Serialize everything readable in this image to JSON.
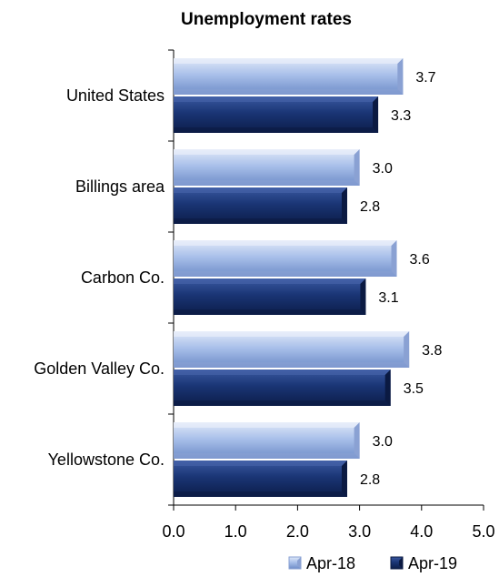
{
  "chart_data": {
    "type": "bar",
    "orientation": "horizontal",
    "title": "Unemployment rates",
    "categories": [
      "United States",
      "Billings area",
      "Carbon Co.",
      "Golden Valley Co.",
      "Yellowstone Co."
    ],
    "series": [
      {
        "name": "Apr-18",
        "values": [
          3.7,
          3.0,
          3.6,
          3.8,
          3.0
        ],
        "color": "#9fb6e6"
      },
      {
        "name": "Apr-19",
        "values": [
          3.3,
          2.8,
          3.1,
          3.5,
          2.8
        ],
        "color": "#16306e"
      }
    ],
    "x_ticks": [
      "0.0",
      "1.0",
      "2.0",
      "3.0",
      "4.0",
      "5.0"
    ],
    "xlim": [
      0,
      5
    ],
    "grid": false,
    "legend_position": "bottom-right"
  }
}
